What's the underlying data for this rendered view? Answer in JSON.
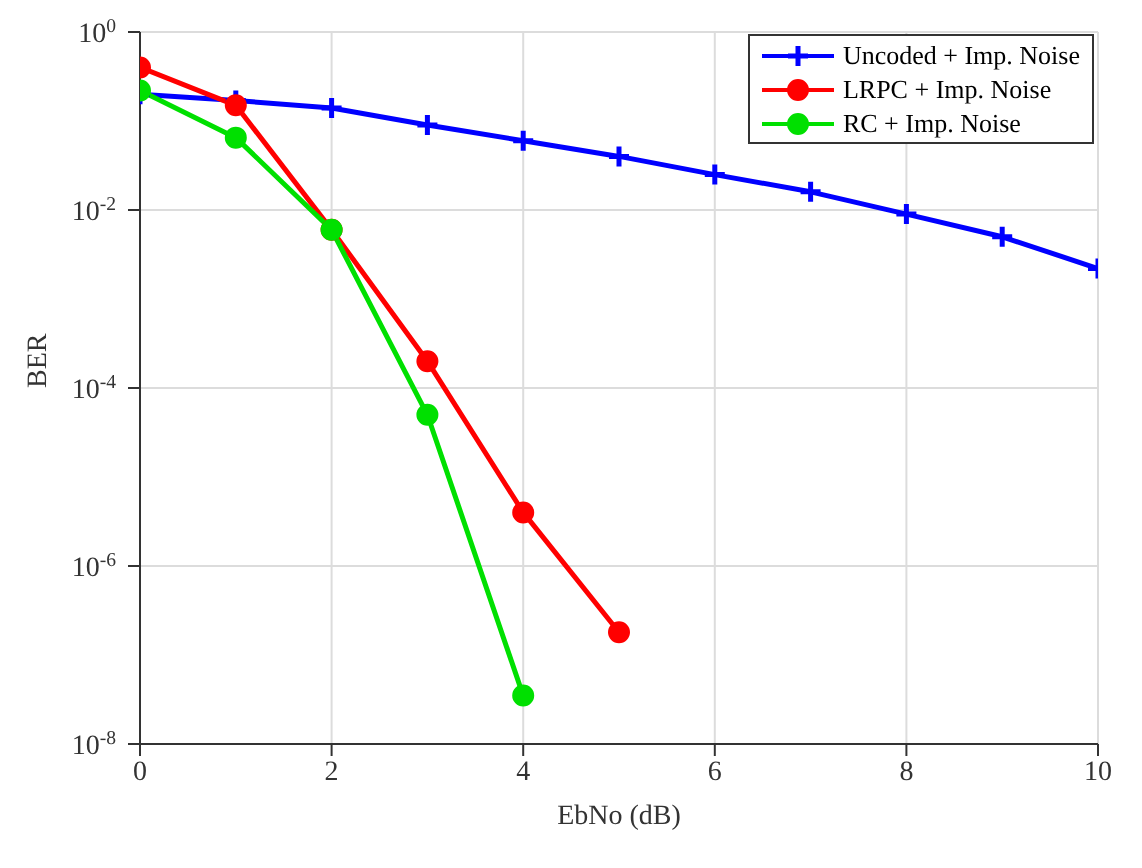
{
  "chart_data": {
    "type": "line",
    "xlabel": "EbNo (dB)",
    "ylabel": "BER",
    "log": "y",
    "grid": true,
    "legend": "top right",
    "xlim": [
      0,
      10
    ],
    "xticks": [
      0,
      2,
      4,
      6,
      8,
      10
    ],
    "ylim": [
      1e-08,
      1
    ],
    "yticks": [
      {
        "value": 1e-08,
        "label": "10$^{-8}$"
      },
      {
        "value": 1e-06,
        "label": "10$^{-6}$"
      },
      {
        "value": 0.0001,
        "label": "10$^{-4}$"
      },
      {
        "value": 0.01,
        "label": "10$^{-2}$"
      },
      {
        "value": 1,
        "label": "10$^{0}$"
      }
    ],
    "series": [
      {
        "name": "Uncoded + Imp. Noise",
        "color": "#0000ff",
        "marker": "cross",
        "x": [
          0,
          1,
          2,
          3,
          4,
          5,
          6,
          7,
          8,
          9,
          10
        ],
        "values": [
          0.2,
          0.17,
          0.14,
          0.09,
          0.06,
          0.04,
          0.025,
          0.016,
          0.009,
          0.005,
          0.0022
        ]
      },
      {
        "name": "LRPC + Imp. Noise",
        "color": "#ff0000",
        "marker": "circle",
        "x": [
          0,
          1,
          2,
          3,
          4,
          5
        ],
        "values": [
          0.4,
          0.15,
          0.006,
          0.0002,
          4e-06,
          1.8e-07
        ]
      },
      {
        "name": "RC + Imp. Noise",
        "color": "#00e000",
        "marker": "circle",
        "x": [
          0,
          1,
          2,
          3,
          4
        ],
        "values": [
          0.22,
          0.065,
          0.006,
          5e-05,
          3.5e-08
        ]
      }
    ]
  }
}
